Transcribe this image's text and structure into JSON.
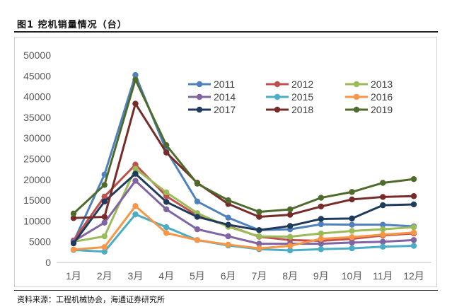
{
  "figure": {
    "title": "图1  挖机销量情况（台）",
    "source": "资料来源：工程机械协会，海通证券研究所"
  },
  "chart_data": {
    "type": "line",
    "title": "",
    "xlabel": "",
    "ylabel": "",
    "ylim": [
      0,
      50000
    ],
    "yticks": [
      0,
      5000,
      10000,
      15000,
      20000,
      25000,
      30000,
      35000,
      40000,
      45000,
      50000
    ],
    "grid": false,
    "legend_position": "top-right",
    "categories": [
      "1月",
      "2月",
      "3月",
      "4月",
      "5月",
      "6月",
      "7月",
      "8月",
      "9月",
      "10月",
      "11月",
      "12月"
    ],
    "series": [
      {
        "name": "2011",
        "color": "#4F81BD",
        "values": [
          5000,
          21200,
          45200,
          27000,
          14700,
          10800,
          7800,
          8000,
          9200,
          9100,
          9100,
          8700
        ]
      },
      {
        "name": "2012",
        "color": "#C0504D",
        "values": [
          5300,
          15900,
          23600,
          16000,
          11300,
          8800,
          6200,
          5400,
          5200,
          5700,
          6500,
          7000
        ]
      },
      {
        "name": "2013",
        "color": "#9BBB59",
        "values": [
          5000,
          6300,
          22600,
          16900,
          11900,
          8600,
          6300,
          6200,
          7000,
          7600,
          8000,
          8500
        ]
      },
      {
        "name": "2014",
        "color": "#8064A2",
        "values": [
          5100,
          9600,
          19700,
          12800,
          8000,
          6300,
          4500,
          4500,
          4500,
          4800,
          5000,
          5400
        ]
      },
      {
        "name": "2015",
        "color": "#4BACC6",
        "values": [
          3000,
          2600,
          11600,
          8500,
          5400,
          4100,
          3200,
          2900,
          3200,
          3400,
          3800,
          4000
        ]
      },
      {
        "name": "2016",
        "color": "#F79646",
        "values": [
          3100,
          3700,
          13600,
          7100,
          5400,
          4300,
          3400,
          4000,
          5700,
          6100,
          6700,
          7200
        ]
      },
      {
        "name": "2017",
        "color": "#1F3B5C",
        "values": [
          4600,
          14700,
          21400,
          14600,
          11000,
          9100,
          7800,
          8800,
          10500,
          10600,
          13800,
          14000
        ]
      },
      {
        "name": "2018",
        "color": "#772C2A",
        "values": [
          10700,
          11000,
          38300,
          26500,
          19200,
          14100,
          11000,
          11500,
          13500,
          15200,
          15800,
          16000
        ]
      },
      {
        "name": "2019",
        "color": "#4E6B2C",
        "values": [
          11800,
          18700,
          44100,
          28300,
          19000,
          15000,
          12200,
          12800,
          15600,
          17000,
          19200,
          20100
        ]
      }
    ]
  }
}
